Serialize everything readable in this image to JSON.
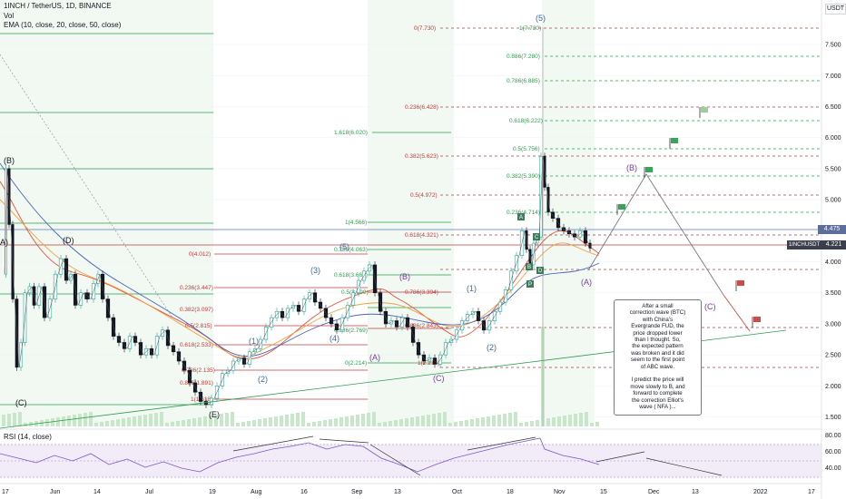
{
  "header": {
    "symbol_line": "1INCH / TetherUS, 1D, BINANCE",
    "vol_label": "Vol",
    "ema_label": "EMA (10, close, 20, close, 50, close)"
  },
  "currency": "USDT",
  "rsi_label": "RSI (14, close)",
  "price_badges": [
    {
      "text": "4.475",
      "color": "#5b6e9c"
    },
    {
      "text": "4.221",
      "color": "#3b3f4d"
    },
    {
      "text": "1INCHUSDT",
      "color": "#3b3f4d"
    }
  ],
  "annotation": "After a small\ncorrection wave (BTC)\nwith China's\nEvergrande FUD, the\nprice dropped lower\nthan I thought. So,\nthe expected pattern\nwas broken and it did\nseem to the first point\nof ABC wave.\n\nI predict the price will\nmove slowly to B, and\nforward to complete\nthe correction Elliot's\nwave ( NFA )...",
  "chart_data": {
    "type": "candlestick",
    "ylim": [
      1.45,
      8.1
    ],
    "y_ticks": [
      1.5,
      2.0,
      2.5,
      3.0,
      3.5,
      4.0,
      4.5,
      5.0,
      5.5,
      6.0,
      6.5,
      7.0,
      7.5
    ],
    "y_tick_labels": [
      "1.500",
      "2.000",
      "2.500",
      "3.000",
      "3.500",
      "4.000",
      "4.500",
      "5.000",
      "5.500",
      "6.000",
      "6.500",
      "7.000",
      "7.500"
    ],
    "x_tick_labels": [
      "17",
      "Jun",
      "14",
      "Jul",
      "19",
      "Aug",
      "16",
      "Sep",
      "13",
      "Oct",
      "18",
      "Nov",
      "15",
      "Dec",
      "13",
      "2022",
      "17"
    ],
    "rsi_ticks": [
      "80.00",
      "60.00",
      "40.00"
    ],
    "rsi_band": [
      70,
      30
    ],
    "price_path": [
      {
        "x": 5,
        "y": 3.8
      },
      {
        "x": 8,
        "y": 5.5
      },
      {
        "x": 12,
        "y": 4.6
      },
      {
        "x": 16,
        "y": 3.4
      },
      {
        "x": 21,
        "y": 2.3
      },
      {
        "x": 25,
        "y": 2.7
      },
      {
        "x": 30,
        "y": 3.5
      },
      {
        "x": 35,
        "y": 3.6
      },
      {
        "x": 40,
        "y": 3.3
      },
      {
        "x": 46,
        "y": 3.6
      },
      {
        "x": 52,
        "y": 3.1
      },
      {
        "x": 58,
        "y": 3.4
      },
      {
        "x": 64,
        "y": 3.8
      },
      {
        "x": 70,
        "y": 4.05
      },
      {
        "x": 76,
        "y": 3.7
      },
      {
        "x": 80,
        "y": 3.8
      },
      {
        "x": 86,
        "y": 3.3
      },
      {
        "x": 92,
        "y": 3.5
      },
      {
        "x": 100,
        "y": 3.4
      },
      {
        "x": 106,
        "y": 3.65
      },
      {
        "x": 110,
        "y": 3.8
      },
      {
        "x": 116,
        "y": 3.4
      },
      {
        "x": 122,
        "y": 3.1
      },
      {
        "x": 128,
        "y": 2.8
      },
      {
        "x": 134,
        "y": 2.7
      },
      {
        "x": 140,
        "y": 2.6
      },
      {
        "x": 146,
        "y": 2.8
      },
      {
        "x": 152,
        "y": 2.7
      },
      {
        "x": 158,
        "y": 2.5
      },
      {
        "x": 164,
        "y": 2.6
      },
      {
        "x": 170,
        "y": 2.5
      },
      {
        "x": 176,
        "y": 2.8
      },
      {
        "x": 182,
        "y": 2.9
      },
      {
        "x": 188,
        "y": 2.65
      },
      {
        "x": 194,
        "y": 2.55
      },
      {
        "x": 200,
        "y": 2.4
      },
      {
        "x": 206,
        "y": 2.25
      },
      {
        "x": 212,
        "y": 2.05
      },
      {
        "x": 218,
        "y": 1.9
      },
      {
        "x": 224,
        "y": 1.75
      },
      {
        "x": 230,
        "y": 1.7
      },
      {
        "x": 236,
        "y": 1.8
      },
      {
        "x": 242,
        "y": 2.0
      },
      {
        "x": 248,
        "y": 2.2
      },
      {
        "x": 254,
        "y": 2.25
      },
      {
        "x": 260,
        "y": 2.4
      },
      {
        "x": 266,
        "y": 2.45
      },
      {
        "x": 272,
        "y": 2.35
      },
      {
        "x": 278,
        "y": 2.55
      },
      {
        "x": 284,
        "y": 2.6
      },
      {
        "x": 290,
        "y": 2.75
      },
      {
        "x": 296,
        "y": 2.95
      },
      {
        "x": 302,
        "y": 3.1
      },
      {
        "x": 308,
        "y": 3.2
      },
      {
        "x": 314,
        "y": 3.1
      },
      {
        "x": 320,
        "y": 3.25
      },
      {
        "x": 326,
        "y": 3.3
      },
      {
        "x": 332,
        "y": 3.2
      },
      {
        "x": 338,
        "y": 3.4
      },
      {
        "x": 344,
        "y": 3.5
      },
      {
        "x": 350,
        "y": 3.35
      },
      {
        "x": 356,
        "y": 3.25
      },
      {
        "x": 362,
        "y": 3.1
      },
      {
        "x": 368,
        "y": 3.0
      },
      {
        "x": 374,
        "y": 2.9
      },
      {
        "x": 380,
        "y": 3.1
      },
      {
        "x": 386,
        "y": 3.3
      },
      {
        "x": 392,
        "y": 3.5
      },
      {
        "x": 398,
        "y": 3.7
      },
      {
        "x": 404,
        "y": 3.85
      },
      {
        "x": 410,
        "y": 3.95
      },
      {
        "x": 416,
        "y": 3.5
      },
      {
        "x": 422,
        "y": 3.2
      },
      {
        "x": 428,
        "y": 3.0
      },
      {
        "x": 434,
        "y": 3.05
      },
      {
        "x": 440,
        "y": 2.95
      },
      {
        "x": 446,
        "y": 3.1
      },
      {
        "x": 452,
        "y": 2.95
      },
      {
        "x": 458,
        "y": 2.7
      },
      {
        "x": 464,
        "y": 2.5
      },
      {
        "x": 470,
        "y": 2.4
      },
      {
        "x": 476,
        "y": 2.45
      },
      {
        "x": 482,
        "y": 2.35
      },
      {
        "x": 488,
        "y": 2.5
      },
      {
        "x": 494,
        "y": 2.7
      },
      {
        "x": 500,
        "y": 2.75
      },
      {
        "x": 506,
        "y": 2.9
      },
      {
        "x": 512,
        "y": 3.05
      },
      {
        "x": 518,
        "y": 3.15
      },
      {
        "x": 524,
        "y": 3.2
      },
      {
        "x": 530,
        "y": 3.05
      },
      {
        "x": 536,
        "y": 2.9
      },
      {
        "x": 542,
        "y": 3.05
      },
      {
        "x": 548,
        "y": 3.2
      },
      {
        "x": 554,
        "y": 3.35
      },
      {
        "x": 560,
        "y": 3.55
      },
      {
        "x": 566,
        "y": 3.85
      },
      {
        "x": 572,
        "y": 4.1
      },
      {
        "x": 578,
        "y": 4.5
      },
      {
        "x": 582,
        "y": 4.2
      },
      {
        "x": 586,
        "y": 3.95
      },
      {
        "x": 590,
        "y": 4.3
      },
      {
        "x": 594,
        "y": 4.4
      },
      {
        "x": 598,
        "y": 5.7
      },
      {
        "x": 602,
        "y": 5.2
      },
      {
        "x": 606,
        "y": 4.8
      },
      {
        "x": 612,
        "y": 4.7
      },
      {
        "x": 618,
        "y": 4.55
      },
      {
        "x": 624,
        "y": 4.5
      },
      {
        "x": 630,
        "y": 4.45
      },
      {
        "x": 636,
        "y": 4.4
      },
      {
        "x": 642,
        "y": 4.5
      },
      {
        "x": 648,
        "y": 4.3
      },
      {
        "x": 652,
        "y": 4.22
      }
    ]
  }
}
